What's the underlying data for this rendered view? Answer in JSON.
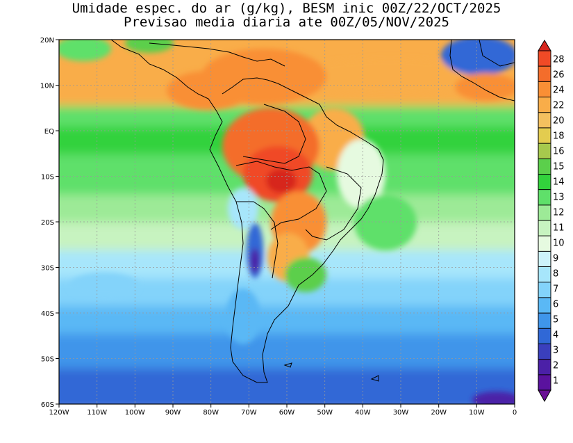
{
  "title": {
    "line1": "Umidade espec. do ar (g/kg), BESM inic 00Z/22/OCT/2025",
    "line2": "Previsao media diaria ate 00Z/05/NOV/2025"
  },
  "axes": {
    "y_labels": [
      "20N",
      "10N",
      "EQ",
      "10S",
      "20S",
      "30S",
      "40S",
      "50S",
      "60S"
    ],
    "x_labels": [
      "120W",
      "110W",
      "100W",
      "90W",
      "80W",
      "70W",
      "60W",
      "50W",
      "40W",
      "30W",
      "20W",
      "10W",
      "0"
    ],
    "lat_range": [
      -60,
      20
    ],
    "lon_range": [
      -120,
      0
    ],
    "grid": "dotted"
  },
  "colorbar": {
    "labels": [
      "28",
      "26",
      "24",
      "22",
      "20",
      "18",
      "16",
      "15",
      "14",
      "13",
      "12",
      "11",
      "10",
      "9",
      "8",
      "7",
      "6",
      "5",
      "4",
      "3",
      "2",
      "1"
    ],
    "colors": [
      "#d7261e",
      "#f04a26",
      "#f46d2b",
      "#f98f35",
      "#f9ad49",
      "#f4c05f",
      "#e3cc4f",
      "#a6c94d",
      "#5bcf4b",
      "#32d23c",
      "#5fe06a",
      "#9dea97",
      "#c7f3c0",
      "#e6fae0",
      "#cdf3fb",
      "#a7e6fb",
      "#83d3fa",
      "#5ab8f5",
      "#3f95ea",
      "#3068d6",
      "#3a3fbd",
      "#4b20a7",
      "#5a129e",
      "#6a0f95"
    ]
  }
}
